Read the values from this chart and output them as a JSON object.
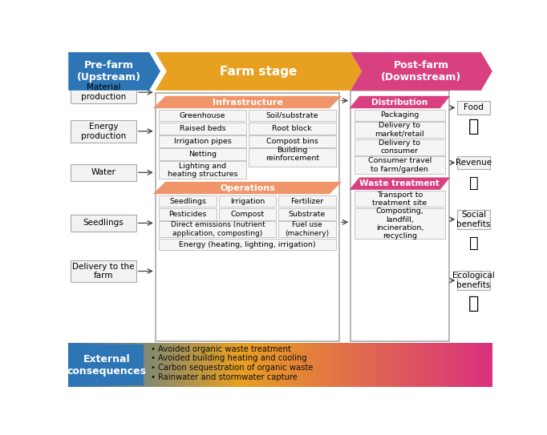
{
  "title_prefarm": "Pre-farm\n(Upstream)",
  "title_farm": "Farm stage",
  "title_postfarm": "Post-farm\n(Downstream)",
  "color_blue": "#2E75B6",
  "color_orange_header": "#E8A020",
  "color_orange_sub": "#F0956A",
  "color_pink": "#D94080",
  "color_white": "#FFFFFF",
  "external_items": [
    "Avoided organic waste treatment",
    "Avoided building heating and cooling",
    "Carbon sequestration of organic waste",
    "Rainwater and stormwater capture"
  ],
  "prefarm_items": [
    "Material\nproduction",
    "Energy\nproduction",
    "Water",
    "Seedlings",
    "Delivery to the\nfarm"
  ],
  "infra_label": "Infrastructure",
  "infra_items_left": [
    "Greenhouse",
    "Raised beds",
    "Irrigation pipes",
    "Netting",
    "Lighting and\nheating structures"
  ],
  "infra_items_right": [
    "Soil/substrate",
    "Root block",
    "Compost bins",
    "Building\nreinforcement"
  ],
  "ops_label": "Operations",
  "ops_row1": [
    "Seedlings",
    "Irrigation",
    "Fertilizer"
  ],
  "ops_row2": [
    "Pesticides",
    "Compost",
    "Substrate"
  ],
  "ops_row3_left": "Direct emissions (nutrient\napplication, composting)",
  "ops_row3_right": "Fuel use\n(machinery)",
  "ops_row4": "Energy (heating, lighting, irrigation)",
  "dist_label": "Distribution",
  "dist_items": [
    "Packaging",
    "Delivery to\nmarket/retail",
    "Delivery to\nconsumer",
    "Consumer travel\nto farm/garden"
  ],
  "waste_label": "Waste treatment",
  "waste_items": [
    "Transport to\ntreatment site",
    "Composting,\nlandfill,\nincineration,\nrecycling"
  ],
  "output_labels": [
    "Food",
    "Revenue",
    "Social\nbenefits",
    "Ecological\nbenefits"
  ]
}
